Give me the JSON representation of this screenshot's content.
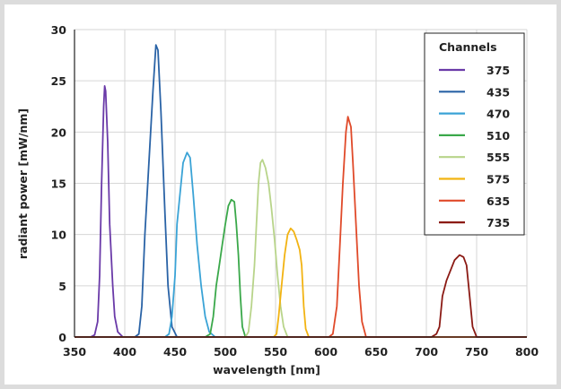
{
  "chart_data": {
    "type": "line",
    "title": "",
    "xlabel": "wavelength [nm]",
    "ylabel": "radiant power [mW/nm]",
    "xlim": [
      350,
      800
    ],
    "ylim": [
      0,
      30
    ],
    "xticks": [
      350,
      400,
      450,
      500,
      550,
      600,
      650,
      700,
      750,
      800
    ],
    "yticks": [
      0,
      5,
      10,
      15,
      20,
      25,
      30
    ],
    "grid": true,
    "legend": {
      "title": "Channels",
      "placement": "top-right"
    },
    "series": [
      {
        "name": "375",
        "color": "#6a3aa8",
        "points": [
          [
            366,
            0
          ],
          [
            370,
            0.2
          ],
          [
            373,
            1.5
          ],
          [
            375,
            6
          ],
          [
            377,
            15
          ],
          [
            379,
            22.5
          ],
          [
            380,
            24.5
          ],
          [
            381,
            24
          ],
          [
            383,
            19
          ],
          [
            385,
            11
          ],
          [
            388,
            5
          ],
          [
            390,
            2
          ],
          [
            393,
            0.5
          ],
          [
            398,
            0
          ]
        ]
      },
      {
        "name": "435",
        "color": "#2a63a6",
        "points": [
          [
            410,
            0
          ],
          [
            414,
            0.3
          ],
          [
            417,
            3
          ],
          [
            420,
            10
          ],
          [
            424,
            17
          ],
          [
            428,
            24
          ],
          [
            431,
            28.5
          ],
          [
            433,
            28
          ],
          [
            436,
            22
          ],
          [
            440,
            12
          ],
          [
            443,
            5
          ],
          [
            447,
            1
          ],
          [
            452,
            0
          ]
        ]
      },
      {
        "name": "470",
        "color": "#3aa3d6",
        "points": [
          [
            440,
            0
          ],
          [
            444,
            0.3
          ],
          [
            447,
            2
          ],
          [
            450,
            6
          ],
          [
            452,
            11
          ],
          [
            455,
            14
          ],
          [
            458,
            17
          ],
          [
            462,
            18
          ],
          [
            465,
            17.5
          ],
          [
            468,
            14
          ],
          [
            472,
            9
          ],
          [
            476,
            5
          ],
          [
            480,
            2
          ],
          [
            484,
            0.5
          ],
          [
            490,
            0
          ]
        ]
      },
      {
        "name": "510",
        "color": "#3aa84a",
        "points": [
          [
            480,
            0
          ],
          [
            485,
            0.3
          ],
          [
            488,
            2
          ],
          [
            491,
            5
          ],
          [
            494,
            7
          ],
          [
            497,
            9
          ],
          [
            500,
            11
          ],
          [
            503,
            12.8
          ],
          [
            506,
            13.4
          ],
          [
            509,
            13.2
          ],
          [
            511,
            11
          ],
          [
            513,
            8
          ],
          [
            515,
            4
          ],
          [
            517,
            1
          ],
          [
            520,
            0
          ]
        ]
      },
      {
        "name": "555",
        "color": "#b8d48a",
        "points": [
          [
            520,
            0
          ],
          [
            523,
            0.5
          ],
          [
            526,
            3
          ],
          [
            529,
            7
          ],
          [
            531,
            11
          ],
          [
            533,
            15
          ],
          [
            535,
            17
          ],
          [
            537,
            17.3
          ],
          [
            540,
            16.5
          ],
          [
            543,
            15
          ],
          [
            546,
            12.5
          ],
          [
            549,
            9.5
          ],
          [
            552,
            6
          ],
          [
            555,
            3
          ],
          [
            558,
            1
          ],
          [
            562,
            0
          ]
        ]
      },
      {
        "name": "575",
        "color": "#f2b312",
        "points": [
          [
            548,
            0
          ],
          [
            551,
            0.3
          ],
          [
            553,
            2
          ],
          [
            556,
            5
          ],
          [
            559,
            8
          ],
          [
            562,
            10
          ],
          [
            565,
            10.6
          ],
          [
            568,
            10.3
          ],
          [
            571,
            9.5
          ],
          [
            574,
            8.5
          ],
          [
            576,
            7
          ],
          [
            578,
            3
          ],
          [
            580,
            0.8
          ],
          [
            583,
            0
          ]
        ]
      },
      {
        "name": "635",
        "color": "#e04a2a",
        "points": [
          [
            603,
            0
          ],
          [
            607,
            0.3
          ],
          [
            611,
            3
          ],
          [
            614,
            9
          ],
          [
            617,
            15
          ],
          [
            620,
            20
          ],
          [
            622,
            21.5
          ],
          [
            625,
            20.5
          ],
          [
            627,
            17
          ],
          [
            630,
            11
          ],
          [
            633,
            5
          ],
          [
            636,
            1.5
          ],
          [
            640,
            0
          ]
        ]
      },
      {
        "name": "735",
        "color": "#8b1a14",
        "points": [
          [
            705,
            0
          ],
          [
            710,
            0.3
          ],
          [
            713,
            1
          ],
          [
            716,
            4
          ],
          [
            720,
            5.5
          ],
          [
            724,
            6.5
          ],
          [
            728,
            7.5
          ],
          [
            733,
            8
          ],
          [
            737,
            7.8
          ],
          [
            740,
            7
          ],
          [
            743,
            4
          ],
          [
            746,
            1
          ],
          [
            750,
            0
          ]
        ]
      }
    ]
  }
}
